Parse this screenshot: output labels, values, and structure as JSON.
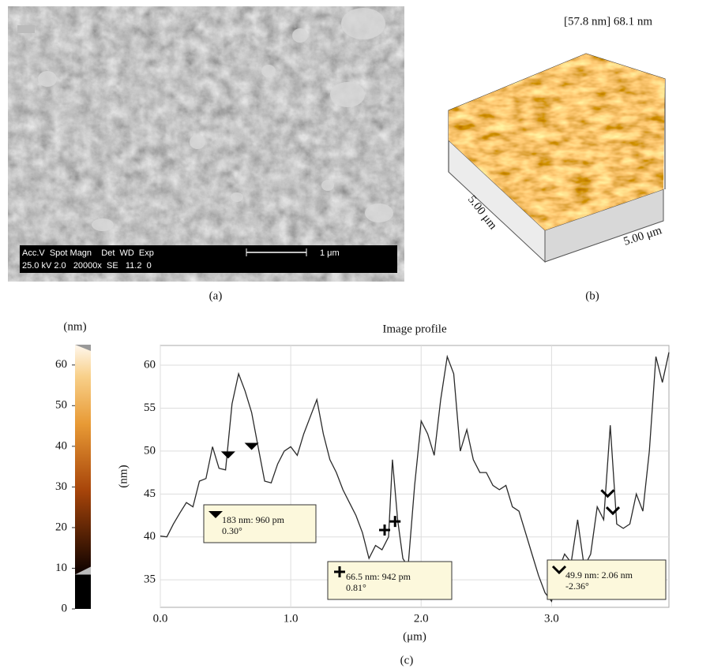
{
  "panel_a": {
    "caption": "(a)",
    "info_header": "Acc.V  Spot Magn    Det  WD  Exp",
    "info_values": "25.0 kV 2.0   20000x  SE   11.2  0",
    "scale_label": "1 μm"
  },
  "panel_b": {
    "caption": "(b)",
    "height_label": "[57.8 nm] 68.1 nm",
    "x_size_label": "5.00 μm",
    "y_size_label": "5.00 μm"
  },
  "colorbar": {
    "unit": "(nm)",
    "lim": [
      0,
      65
    ],
    "ticks": [
      0,
      10,
      20,
      30,
      40,
      50,
      60
    ]
  },
  "chart_data": {
    "type": "line",
    "title": "Image profile",
    "x_label": "(μm)",
    "y_label": "(nm)",
    "caption": "(c)",
    "color": "#2a2a2a",
    "grid": true,
    "x": [
      0.0,
      0.05,
      0.1,
      0.15,
      0.2,
      0.25,
      0.3,
      0.35,
      0.4,
      0.45,
      0.5,
      0.55,
      0.6,
      0.65,
      0.7,
      0.75,
      0.8,
      0.85,
      0.9,
      0.95,
      1.0,
      1.05,
      1.1,
      1.15,
      1.2,
      1.25,
      1.3,
      1.35,
      1.4,
      1.45,
      1.5,
      1.55,
      1.6,
      1.65,
      1.7,
      1.75,
      1.78,
      1.82,
      1.86,
      1.9,
      1.95,
      2.0,
      2.05,
      2.1,
      2.15,
      2.2,
      2.25,
      2.3,
      2.35,
      2.4,
      2.45,
      2.5,
      2.55,
      2.6,
      2.65,
      2.7,
      2.75,
      2.8,
      2.85,
      2.9,
      2.95,
      3.0,
      3.05,
      3.1,
      3.15,
      3.2,
      3.25,
      3.3,
      3.35,
      3.4,
      3.45,
      3.5,
      3.55,
      3.6,
      3.65,
      3.7,
      3.75,
      3.8,
      3.85,
      3.9
    ],
    "values": [
      40.1,
      40.0,
      41.5,
      42.8,
      44.0,
      43.5,
      46.5,
      46.8,
      50.5,
      48.0,
      47.8,
      55.5,
      59.0,
      57.0,
      54.5,
      50.5,
      46.5,
      46.3,
      48.5,
      50.0,
      50.5,
      49.5,
      52.0,
      54.0,
      56.0,
      52.0,
      49.0,
      47.5,
      45.5,
      44.0,
      42.5,
      40.5,
      37.5,
      39.0,
      38.5,
      40.0,
      49.0,
      42.0,
      37.5,
      36.5,
      46.0,
      53.5,
      52.0,
      49.5,
      56.0,
      61.0,
      59.0,
      50.0,
      52.5,
      49.0,
      47.5,
      47.5,
      46.0,
      45.5,
      46.0,
      43.5,
      43.0,
      40.5,
      38.0,
      35.5,
      33.5,
      32.5,
      36.0,
      38.0,
      37.0,
      42.0,
      36.5,
      38.0,
      43.5,
      42.0,
      53.0,
      41.5,
      41.0,
      41.5,
      45.0,
      43.0,
      50.0,
      61.0,
      58.0,
      61.5
    ],
    "xlim": [
      0,
      3.9
    ],
    "ylim": [
      31.8,
      62.3
    ],
    "xticks": [
      {
        "value": 0,
        "label": "0.0"
      },
      {
        "value": 1,
        "label": "1.0"
      },
      {
        "value": 2,
        "label": "2.0"
      },
      {
        "value": 3,
        "label": "3.0"
      }
    ],
    "yticks": [
      35,
      40,
      45,
      50,
      55,
      60
    ],
    "cursors": [
      {
        "x": 0.52,
        "y": 49.5,
        "shape": "triangle"
      },
      {
        "x": 0.7,
        "y": 50.5,
        "shape": "triangle"
      },
      {
        "x": 1.72,
        "y": 40.8,
        "shape": "cross"
      },
      {
        "x": 1.8,
        "y": 41.8,
        "shape": "cross"
      },
      {
        "x": 3.43,
        "y": 45.0,
        "shape": "chevron"
      },
      {
        "x": 3.47,
        "y": 43.0,
        "shape": "chevron"
      }
    ],
    "annotations": [
      {
        "shape": "triangle",
        "lines": [
          "183 nm: 960 pm",
          "0.30°"
        ]
      },
      {
        "shape": "cross",
        "lines": [
          "66.5 nm: 942 pm",
          "0.81°"
        ]
      },
      {
        "shape": "chevron",
        "lines": [
          "49.9 nm: 2.06 nm",
          "-2.36°"
        ]
      }
    ]
  }
}
